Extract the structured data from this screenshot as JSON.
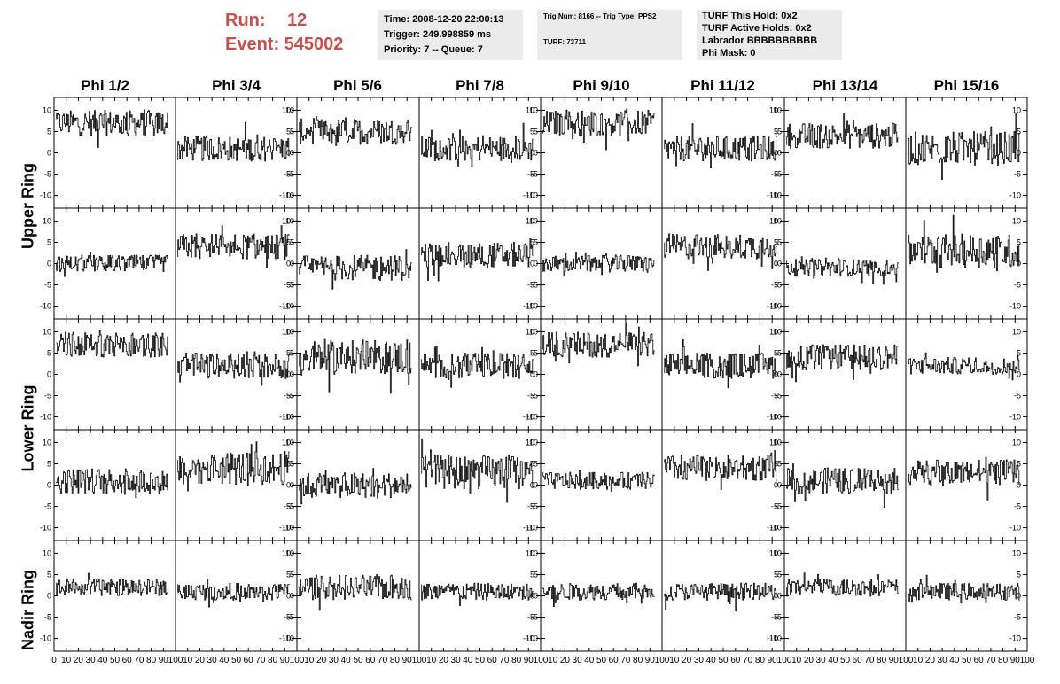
{
  "run": {
    "label": "Run:",
    "value": "12"
  },
  "event": {
    "label": "Event:",
    "value": "545002"
  },
  "info1": {
    "time": "Time: 2008-12-20 22:00:13",
    "trigger": "Trigger: 249.998859 ms",
    "priority": "Priority: 7 -- Queue: 7"
  },
  "info2": {
    "trig": "Trig Num: 8166 -- Trig Type: PPS2",
    "turf": "TURF: 73711"
  },
  "info3": {
    "this_hold": "TURF This Hold: 0x2",
    "active_holds": "TURF Active Holds: 0x2",
    "labrador": "Labrador BBBBBBBBBB",
    "phi_mask": "Phi Mask: 0"
  },
  "columns": [
    "Phi 1/2",
    "Phi 3/4",
    "Phi 5/6",
    "Phi 7/8",
    "Phi 9/10",
    "Phi 11/12",
    "Phi 13/14",
    "Phi 15/16"
  ],
  "rows": [
    "Upper Ring",
    "Lower Ring",
    "Nadir Ring"
  ],
  "chart_data": {
    "type": "line",
    "xlim": [
      0,
      100
    ],
    "ylim": [
      -13,
      13
    ],
    "x_ticks": [
      0,
      10,
      20,
      30,
      40,
      50,
      60,
      70,
      80,
      90,
      100
    ],
    "y_ticks": [
      -10,
      -5,
      0,
      5,
      10
    ],
    "panel_rows": 5,
    "panel_cols": 8,
    "left_axis_cols": [
      0,
      2,
      4,
      6
    ],
    "baselines": [
      [
        7,
        1,
        5,
        1,
        7,
        1,
        4,
        1
      ],
      [
        0,
        4,
        -1,
        2,
        0,
        4,
        -1,
        3
      ],
      [
        7,
        2,
        4,
        2,
        7,
        2,
        4,
        2
      ],
      [
        1,
        4,
        0,
        3,
        1,
        4,
        1,
        3
      ],
      [
        2,
        1,
        2,
        1,
        1,
        1,
        2,
        1
      ]
    ],
    "amplitude": [
      [
        3,
        3,
        3,
        3,
        3,
        3,
        3,
        4
      ],
      [
        2,
        3,
        3,
        3,
        2,
        3,
        2,
        4
      ],
      [
        3,
        3,
        4,
        3,
        3,
        3,
        3,
        2
      ],
      [
        3,
        4,
        3,
        4,
        2,
        3,
        3,
        3
      ],
      [
        2,
        2,
        3,
        2,
        2,
        2,
        2,
        2
      ]
    ]
  }
}
